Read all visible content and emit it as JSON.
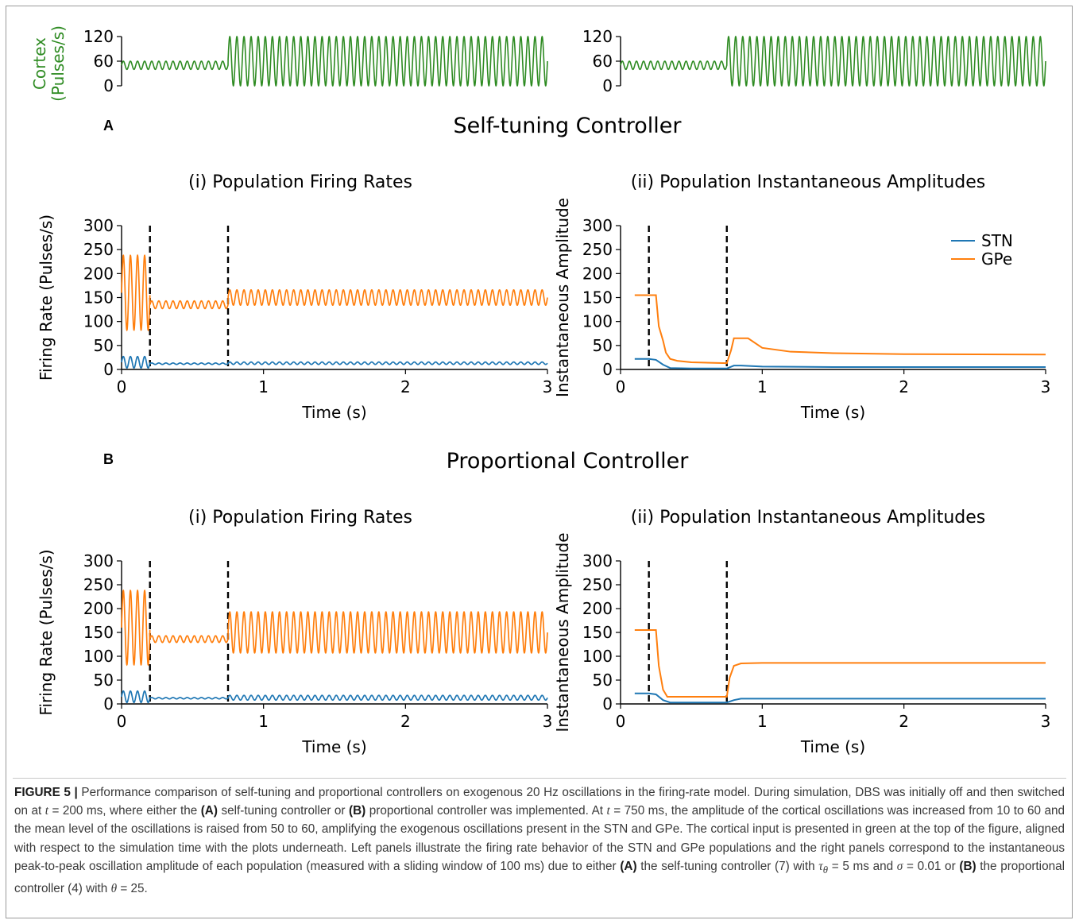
{
  "cortex": {
    "ylabel_line1": "Cortex",
    "ylabel_line2": "(Pulses/s)",
    "yticks": [
      "120",
      "60",
      "0"
    ],
    "color": "#2e8b22"
  },
  "panelA": {
    "letter": "A",
    "heading": "Self-tuning Controller",
    "left_title": "(i) Population Firing Rates",
    "right_title": "(ii) Population Instantaneous Amplitudes"
  },
  "panelB": {
    "letter": "B",
    "heading": "Proportional Controller",
    "left_title": "(i) Population Firing Rates",
    "right_title": "(ii) Population Instantaneous Amplitudes"
  },
  "axes": {
    "left_ylabel": "Firing Rate (Pulses/s)",
    "right_ylabel": "Instantaneous Amplitude",
    "xlabel": "Time (s)",
    "yticks": [
      "300",
      "250",
      "200",
      "150",
      "100",
      "50",
      "0"
    ],
    "xticks": [
      "0",
      "1",
      "2",
      "3"
    ]
  },
  "legend": {
    "stn": "STN",
    "gpe": "GPe"
  },
  "colors": {
    "stn": "#1f77b4",
    "gpe": "#ff7f0e",
    "cortex": "#2e8b22",
    "dashed": "#000000"
  },
  "caption": {
    "label": "FIGURE 5 |",
    "p1": " Performance comparison of self-tuning and proportional controllers on exogenous 20 Hz oscillations in the firing-rate model. During simulation, DBS was initially off and then switched on at ",
    "t": "t",
    "p2": " = 200 ms, where either the ",
    "A": "(A)",
    "p3": " self-tuning controller or ",
    "B": "(B)",
    "p4": " proportional controller was implemented. At ",
    "p5": " = 750 ms, the amplitude of the cortical oscillations was increased from 10 to 60 and the mean level of the oscillations is raised from 50 to 60, amplifying the exogenous oscillations present in the STN and GPe. The cortical input is presented in green at the top of the figure, aligned with respect to the simulation time with the plots underneath. Left panels illustrate the firing rate behavior of the STN and GPe populations and the right panels correspond to the instantaneous peak-to-peak oscillation amplitude of each population (measured with a sliding window of 100 ms) due to either ",
    "p6": " the self-tuning controller (7) with ",
    "tau": "τ",
    "theta_sub": "θ",
    "p7": " = 5 ms and ",
    "sigma": "σ",
    "p8": " = 0.01 or ",
    "p9": " the proportional controller (4) with ",
    "theta": "θ",
    "p10": " = 25."
  },
  "chart_data": [
    {
      "type": "line",
      "title": "",
      "ylabel": "Cortex (Pulses/s)",
      "xlim": [
        0,
        3
      ],
      "ylim": [
        0,
        120
      ],
      "series": [
        {
          "segments": [
            {
              "x_range": [
                0,
                0.75
              ],
              "mean": 50,
              "amplitude": 10,
              "freq_hz": 20
            },
            {
              "x_range": [
                0.75,
                3
              ],
              "mean": 60,
              "amplitude": 60,
              "freq_hz": 20
            }
          ]
        }
      ]
    },
    {
      "type": "line",
      "title": "(i) Population Firing Rates",
      "panel": "A",
      "xlabel": "Time (s)",
      "ylabel": "Firing Rate (Pulses/s)",
      "xlim": [
        0,
        3
      ],
      "ylim": [
        0,
        300
      ],
      "vlines": [
        0.2,
        0.75
      ],
      "series": [
        {
          "name": "GPe",
          "segments": [
            {
              "x_range": [
                0,
                0.2
              ],
              "mean": 160,
              "amplitude": 78,
              "freq_hz": 20
            },
            {
              "x_range": [
                0.2,
                0.75
              ],
              "mean": 135,
              "amplitude": 8,
              "freq_hz": 20
            },
            {
              "x_range": [
                0.75,
                3
              ],
              "mean": 150,
              "amplitude": 16,
              "freq_hz": 20
            }
          ]
        },
        {
          "name": "STN",
          "segments": [
            {
              "x_range": [
                0,
                0.2
              ],
              "mean": 15,
              "amplitude": 12,
              "freq_hz": 20
            },
            {
              "x_range": [
                0.2,
                0.75
              ],
              "mean": 12,
              "amplitude": 1.5,
              "freq_hz": 20
            },
            {
              "x_range": [
                0.75,
                3
              ],
              "mean": 13,
              "amplitude": 2.5,
              "freq_hz": 20
            }
          ]
        }
      ]
    },
    {
      "type": "line",
      "title": "(ii) Population Instantaneous Amplitudes",
      "panel": "A",
      "xlabel": "Time (s)",
      "ylabel": "Instantaneous Amplitude",
      "xlim": [
        0,
        3
      ],
      "ylim": [
        0,
        300
      ],
      "vlines": [
        0.2,
        0.75
      ],
      "legend": "top-right",
      "series": [
        {
          "name": "STN",
          "x": [
            0.1,
            0.2,
            0.25,
            0.3,
            0.35,
            0.5,
            0.75,
            0.8,
            0.85,
            1.0,
            1.5,
            3.0
          ],
          "y": [
            22,
            22,
            20,
            10,
            3,
            2,
            2,
            8,
            8,
            6,
            5,
            5
          ]
        },
        {
          "name": "GPe",
          "x": [
            0.1,
            0.25,
            0.27,
            0.3,
            0.32,
            0.35,
            0.4,
            0.5,
            0.75,
            0.78,
            0.8,
            0.9,
            1.0,
            1.2,
            1.5,
            2.0,
            3.0
          ],
          "y": [
            155,
            155,
            90,
            60,
            35,
            22,
            18,
            15,
            13,
            40,
            65,
            65,
            45,
            37,
            34,
            32,
            31
          ]
        }
      ]
    },
    {
      "type": "line",
      "title": "(i) Population Firing Rates",
      "panel": "B",
      "xlabel": "Time (s)",
      "ylabel": "Firing Rate (Pulses/s)",
      "xlim": [
        0,
        3
      ],
      "ylim": [
        0,
        300
      ],
      "vlines": [
        0.2,
        0.75
      ],
      "series": [
        {
          "name": "GPe",
          "segments": [
            {
              "x_range": [
                0,
                0.2
              ],
              "mean": 160,
              "amplitude": 78,
              "freq_hz": 20
            },
            {
              "x_range": [
                0.2,
                0.75
              ],
              "mean": 136,
              "amplitude": 7,
              "freq_hz": 20
            },
            {
              "x_range": [
                0.75,
                3
              ],
              "mean": 150,
              "amplitude": 43,
              "freq_hz": 20
            }
          ]
        },
        {
          "name": "STN",
          "segments": [
            {
              "x_range": [
                0,
                0.2
              ],
              "mean": 15,
              "amplitude": 12,
              "freq_hz": 20
            },
            {
              "x_range": [
                0.2,
                0.75
              ],
              "mean": 12,
              "amplitude": 1.5,
              "freq_hz": 20
            },
            {
              "x_range": [
                0.75,
                3
              ],
              "mean": 13,
              "amplitude": 5,
              "freq_hz": 20
            }
          ]
        }
      ]
    },
    {
      "type": "line",
      "title": "(ii) Population Instantaneous Amplitudes",
      "panel": "B",
      "xlabel": "Time (s)",
      "ylabel": "Instantaneous Amplitude",
      "xlim": [
        0,
        3
      ],
      "ylim": [
        0,
        300
      ],
      "vlines": [
        0.2,
        0.75
      ],
      "series": [
        {
          "name": "STN",
          "x": [
            0.1,
            0.2,
            0.25,
            0.3,
            0.35,
            0.5,
            0.75,
            0.8,
            0.85,
            1.0,
            3.0
          ],
          "y": [
            22,
            22,
            20,
            8,
            3,
            3,
            3,
            8,
            11,
            11,
            11
          ]
        },
        {
          "name": "GPe",
          "x": [
            0.1,
            0.25,
            0.27,
            0.3,
            0.33,
            0.5,
            0.75,
            0.77,
            0.8,
            0.85,
            1.0,
            3.0
          ],
          "y": [
            155,
            155,
            80,
            30,
            15,
            15,
            15,
            55,
            80,
            85,
            86,
            86
          ]
        }
      ]
    }
  ]
}
